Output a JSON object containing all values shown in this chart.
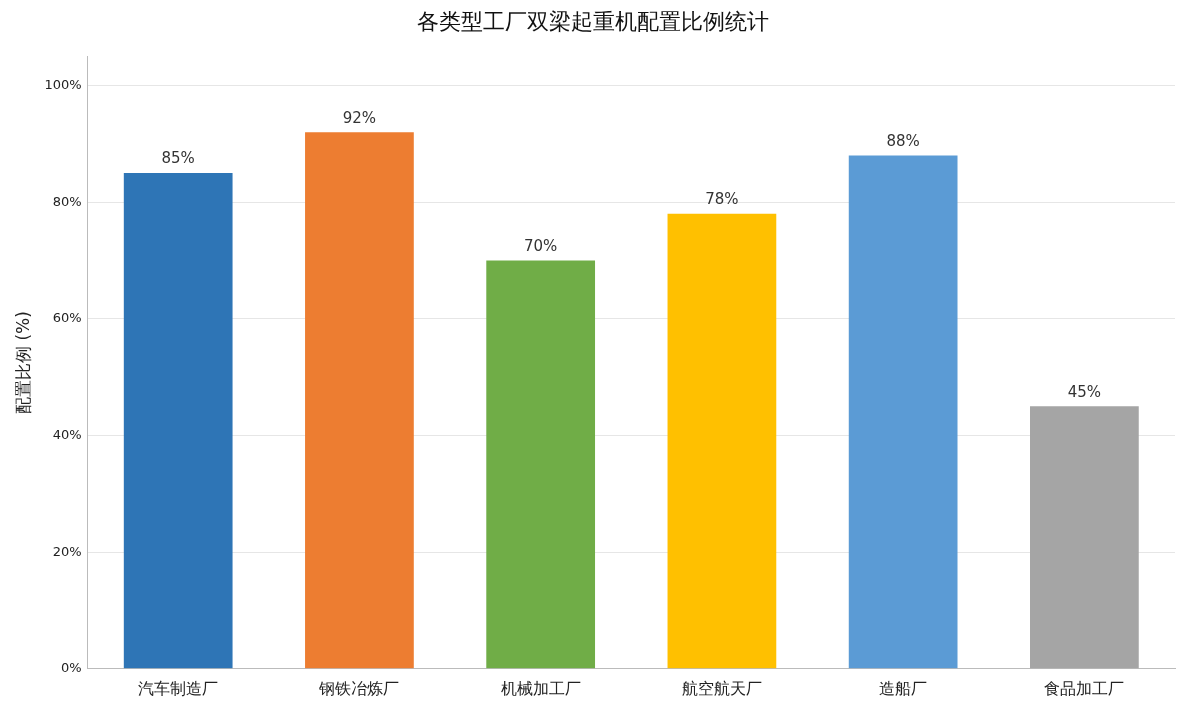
{
  "chart_data": {
    "type": "bar",
    "title": "各类型工厂双梁起重机配置比例统计",
    "ylabel": "配置比例 (%)",
    "categories": [
      "汽车制造厂",
      "钢铁冶炼厂",
      "机械加工厂",
      "航空航天厂",
      "造船厂",
      "食品加工厂"
    ],
    "values": [
      85,
      92,
      70,
      78,
      88,
      45
    ],
    "colors": [
      "#2e75b6",
      "#ed7d31",
      "#70ad47",
      "#ffc000",
      "#5b9bd5",
      "#a5a5a5"
    ],
    "value_labels": [
      "85%",
      "92%",
      "70%",
      "78%",
      "88%",
      "45%"
    ],
    "ylim": [
      0,
      105
    ],
    "yticks": [
      {
        "value": 0,
        "label": "0%"
      },
      {
        "value": 20,
        "label": "20%"
      },
      {
        "value": 40,
        "label": "40%"
      },
      {
        "value": 60,
        "label": "60%"
      },
      {
        "value": 80,
        "label": "80%"
      },
      {
        "value": 100,
        "label": "100%"
      }
    ],
    "grid": "y",
    "legend": false
  }
}
